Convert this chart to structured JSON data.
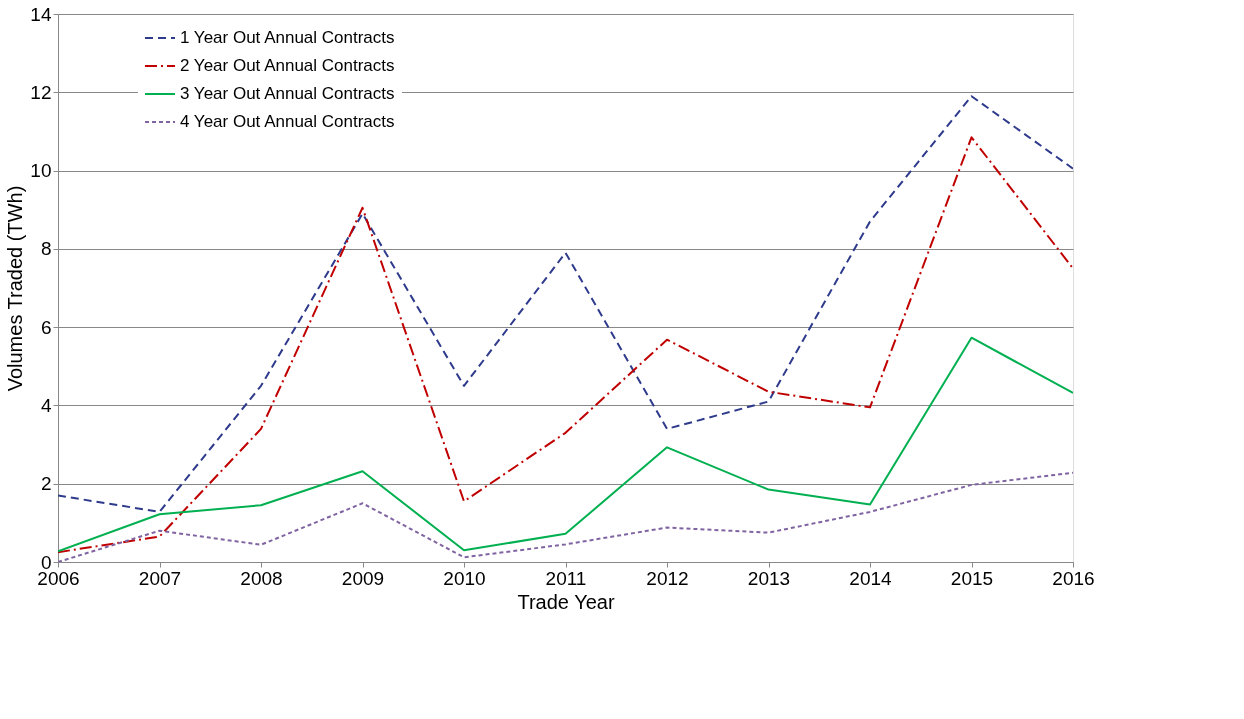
{
  "chart_data": {
    "type": "line",
    "xlabel": "Trade Year",
    "ylabel": "Volumes Traded (TWh)",
    "x": [
      2006,
      2007,
      2008,
      2009,
      2010,
      2011,
      2012,
      2013,
      2014,
      2015,
      2016
    ],
    "xlim": [
      2006,
      2016
    ],
    "xticks": [
      2006,
      2007,
      2008,
      2009,
      2010,
      2011,
      2012,
      2013,
      2014,
      2015,
      2016
    ],
    "ylim": [
      0,
      14
    ],
    "yticks": [
      0,
      2,
      4,
      6,
      8,
      10,
      12,
      14
    ],
    "grid": "y",
    "legend": "top left",
    "marker": "none",
    "series": [
      {
        "name": "1 Year Out Annual Contracts",
        "color": "#2e3a8c",
        "line_style": "dashed",
        "values": [
          1.7,
          1.28,
          4.5,
          8.9,
          4.5,
          7.9,
          3.4,
          4.1,
          8.7,
          11.9,
          10.05
        ]
      },
      {
        "name": "2 Year Out Annual Contracts",
        "color": "#c00000",
        "line_style": "dashdot",
        "values": [
          0.25,
          0.65,
          3.4,
          9.05,
          1.55,
          3.3,
          5.68,
          4.35,
          3.95,
          10.85,
          7.5
        ]
      },
      {
        "name": "3 Year Out Annual Contracts",
        "color": "#00b050",
        "line_style": "solid",
        "values": [
          0.27,
          1.22,
          1.45,
          2.32,
          0.3,
          0.72,
          2.93,
          1.85,
          1.47,
          5.73,
          4.32
        ]
      },
      {
        "name": "4 Year Out Annual Contracts",
        "color": "#8064a2",
        "line_style": "dotted",
        "values": [
          0.0,
          0.8,
          0.44,
          1.5,
          0.12,
          0.45,
          0.88,
          0.75,
          1.28,
          1.97,
          2.28
        ]
      }
    ]
  }
}
